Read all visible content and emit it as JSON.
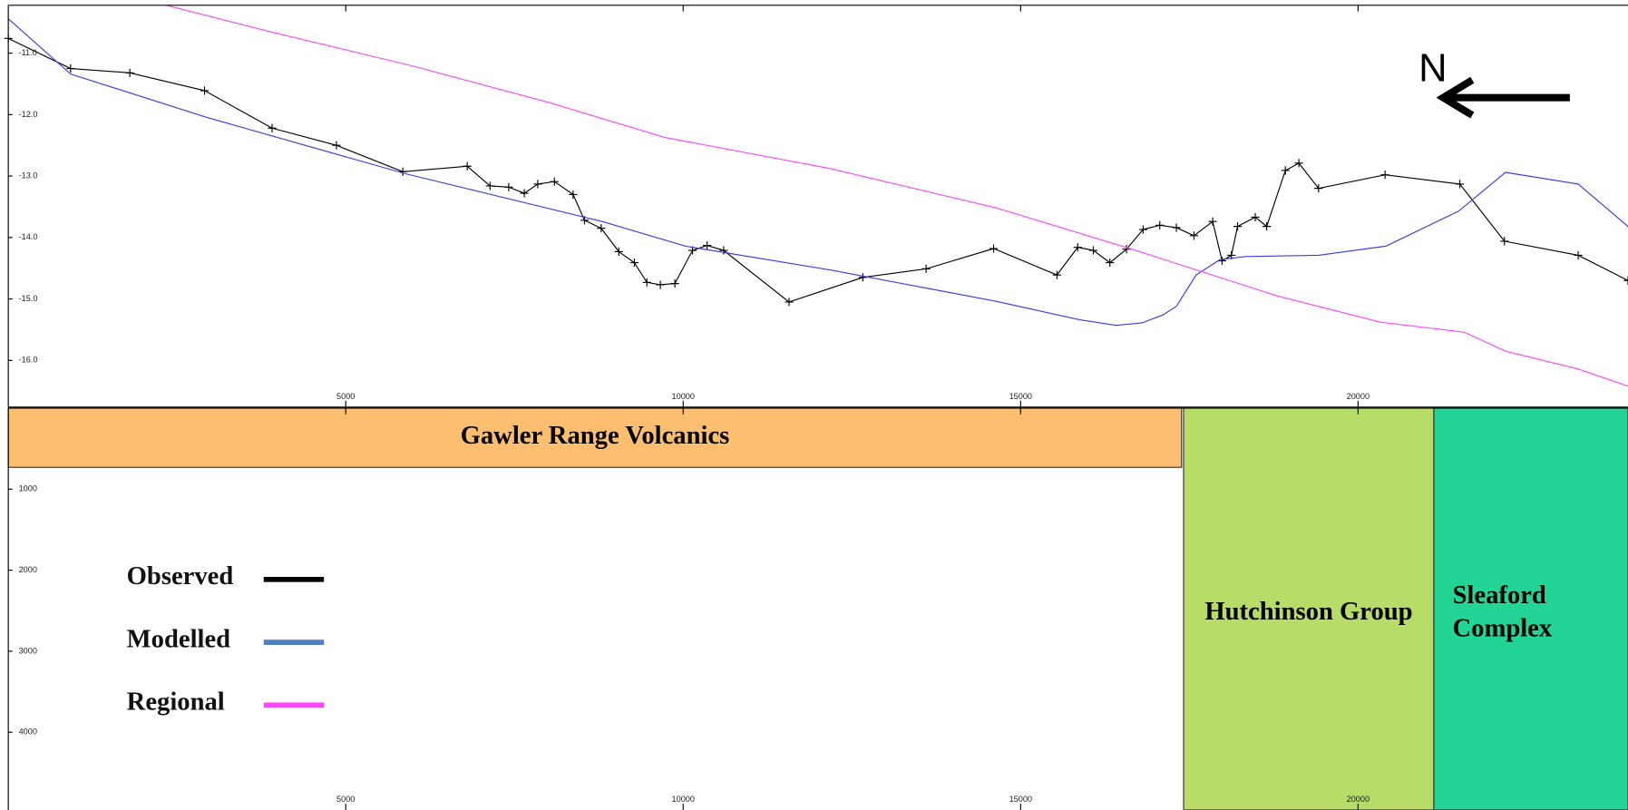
{
  "chart_data": [
    {
      "type": "line",
      "annotation": "N",
      "xlim": [
        0,
        24000
      ],
      "ylim": [
        -16.76,
        -10.22
      ],
      "xticks": [
        5000,
        10000,
        15000,
        20000
      ],
      "yticks": [
        {
          "value": -11,
          "label": "-11.0"
        },
        {
          "value": -12,
          "label": "-12.0"
        },
        {
          "value": -13,
          "label": "-13.0"
        },
        {
          "value": -14,
          "label": "-14.0"
        },
        {
          "value": -15,
          "label": "-15.0"
        },
        {
          "value": -16,
          "label": "-16.0"
        }
      ],
      "series": [
        {
          "name": "Observed",
          "color": "#000000",
          "markers": true,
          "x": [
            0,
            923,
            1800,
            2908,
            3908,
            4862,
            5846,
            6800,
            7138,
            7415,
            7646,
            7846,
            8092,
            8369,
            8538,
            8785,
            9046,
            9277,
            9462,
            9662,
            9877,
            10138,
            10354,
            10600,
            11569,
            12662,
            13600,
            14600,
            15538,
            15846,
            16077,
            16323,
            16569,
            16815,
            17062,
            17308,
            17569,
            17846,
            17985,
            18123,
            18215,
            18477,
            18646,
            18923,
            19123,
            19415,
            20400,
            21508,
            22169,
            23262,
            24000
          ],
          "values": [
            -10.76,
            -11.25,
            -11.32,
            -11.61,
            -12.22,
            -12.5,
            -12.93,
            -12.84,
            -13.16,
            -13.18,
            -13.28,
            -13.13,
            -13.09,
            -13.3,
            -13.72,
            -13.85,
            -14.23,
            -14.41,
            -14.73,
            -14.77,
            -14.75,
            -14.21,
            -14.13,
            -14.21,
            -15.05,
            -14.65,
            -14.51,
            -14.18,
            -14.61,
            -14.16,
            -14.21,
            -14.41,
            -14.19,
            -13.87,
            -13.8,
            -13.84,
            -13.97,
            -13.74,
            -14.38,
            -14.29,
            -13.82,
            -13.67,
            -13.82,
            -12.91,
            -12.79,
            -13.2,
            -12.98,
            -13.13,
            -14.06,
            -14.29,
            -14.7
          ]
        },
        {
          "name": "Modelled",
          "color": "#3a3ae8",
          "markers": false,
          "x": [
            0,
            923,
            2954,
            5877,
            8800,
            10031,
            12185,
            14646,
            15877,
            16415,
            16800,
            17108,
            17308,
            17600,
            17954,
            18338,
            19415,
            20415,
            21492,
            22185,
            23262,
            24000
          ],
          "values": [
            -10.44,
            -11.34,
            -12.05,
            -12.96,
            -13.74,
            -14.14,
            -14.53,
            -15.04,
            -15.34,
            -15.43,
            -15.39,
            -15.26,
            -15.12,
            -14.61,
            -14.36,
            -14.31,
            -14.29,
            -14.14,
            -13.57,
            -12.94,
            -13.13,
            -13.82
          ]
        },
        {
          "name": "Regional",
          "color": "#ff44ff",
          "markers": false,
          "x": [
            2338,
            3877,
            6031,
            8031,
            9723,
            12185,
            14646,
            16646,
            18800,
            20338,
            21569,
            22185,
            23262,
            24000
          ],
          "values": [
            -10.22,
            -10.65,
            -11.22,
            -11.81,
            -12.37,
            -12.88,
            -13.52,
            -14.19,
            -14.95,
            -15.38,
            -15.54,
            -15.85,
            -16.14,
            -16.42
          ]
        }
      ]
    },
    {
      "type": "section",
      "xlim": [
        0,
        24000
      ],
      "ylim": [
        4960,
        0
      ],
      "xticks": [
        5000,
        10000,
        15000,
        20000
      ],
      "yticks": [
        1000,
        2000,
        3000,
        4000
      ],
      "bodies": [
        {
          "label": [
            "Gawler Range Volcanics"
          ],
          "color": "#fdbf6f",
          "x": [
            0,
            17385
          ],
          "depth": [
            0,
            731
          ]
        },
        {
          "label": [
            "Hutchinson Group"
          ],
          "color": "#b8dc68",
          "x": [
            17415,
            21123
          ],
          "depth": [
            0,
            4960
          ]
        },
        {
          "label": [
            "Sleaford",
            "Complex"
          ],
          "color": "#22d495",
          "x": [
            21123,
            24000
          ],
          "depth": [
            0,
            4960
          ]
        }
      ]
    }
  ]
}
